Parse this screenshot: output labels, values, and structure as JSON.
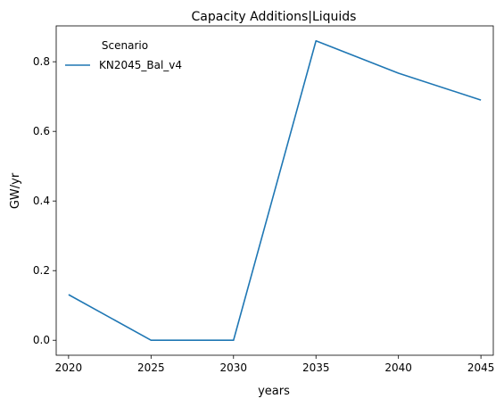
{
  "chart_data": {
    "type": "line",
    "title": "Capacity Additions|Liquids",
    "xlabel": "years",
    "ylabel": "GW/yr",
    "x": [
      2020,
      2025,
      2030,
      2035,
      2040,
      2045
    ],
    "xticks": [
      "2020",
      "2025",
      "2030",
      "2035",
      "2040",
      "2045"
    ],
    "yticks": [
      "0.0",
      "0.2",
      "0.4",
      "0.6",
      "0.8"
    ],
    "xlim": [
      2019.25,
      2045.75
    ],
    "ylim": [
      -0.043,
      0.903
    ],
    "grid": false,
    "legend": {
      "title": "Scenario",
      "placement": "top-left"
    },
    "series": [
      {
        "name": "KN2045_Bal_v4",
        "color": "#1f77b4",
        "values": [
          0.131,
          0.0,
          0.0,
          0.86,
          0.767,
          0.69
        ]
      }
    ]
  }
}
